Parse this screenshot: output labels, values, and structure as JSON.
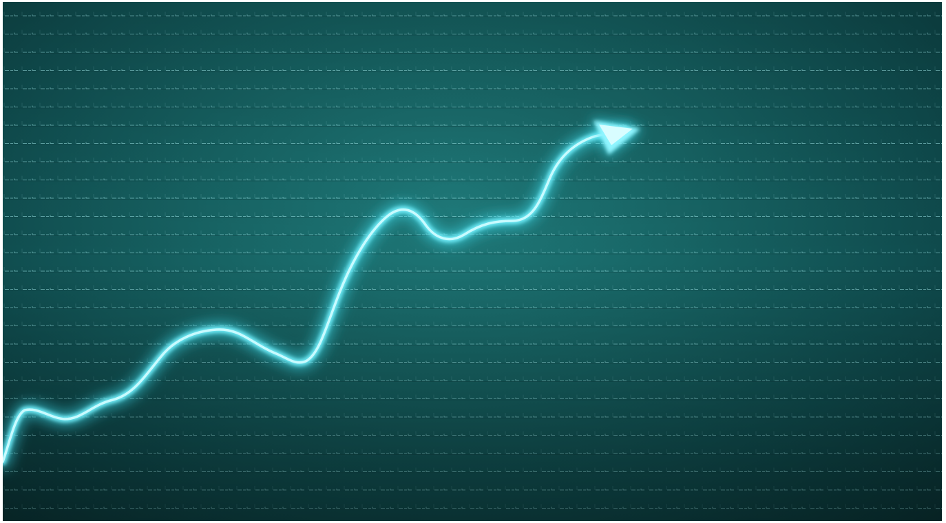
{
  "image": {
    "kind": "glowing upward trend line over a teal digital grid",
    "accent_color": "#7ff3ff",
    "line_color": "#8ff5ff",
    "glow_color": "#3fe0f0",
    "grid_color": "#9fe6e8",
    "background_dark": "#0a3436",
    "background_mid": "#176464",
    "background_light": "#1f7a7a",
    "arrow_icon": "arrowhead-icon"
  }
}
